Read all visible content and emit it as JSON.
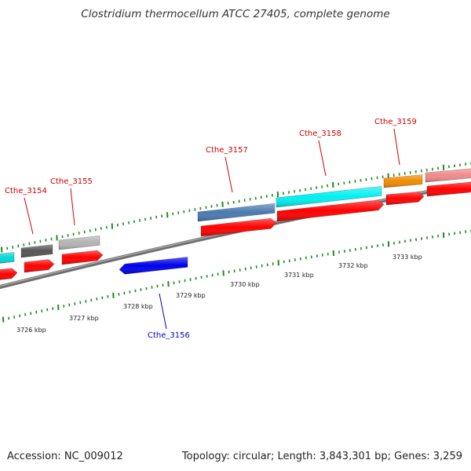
{
  "title": "Clostridium thermocellum ATCC 27405, complete genome",
  "accession": "Accession: NC_009012",
  "topology": "Topology: circular; Length: 3,843,301 bp; Genes: 3,259",
  "colors": {
    "forward_gene_red": "#ff0000",
    "reverse_gene_blue": "#0000ee",
    "label_red": "#cc0000",
    "label_blue": "#0000cc",
    "tick_green": "#1e8a1e",
    "backbone_gray": "#7a7a7a"
  },
  "scale_labels": [
    "3726 kbp",
    "3727 kbp",
    "3728 kbp",
    "3729 kbp",
    "3730 kbp",
    "3731 kbp",
    "3732 kbp",
    "3733 kbp"
  ],
  "gene_labels": [
    {
      "name": "Cthe_3154",
      "strand": "forward"
    },
    {
      "name": "Cthe_3155",
      "strand": "forward"
    },
    {
      "name": "Cthe_3156",
      "strand": "reverse"
    },
    {
      "name": "Cthe_3157",
      "strand": "forward"
    },
    {
      "name": "Cthe_3158",
      "strand": "forward"
    },
    {
      "name": "Cthe_3159",
      "strand": "forward"
    }
  ],
  "feature_colors": [
    "#00d8d8",
    "#555555",
    "#b4b4b4",
    "#4a7ab0",
    "#00f0f0",
    "#f08c00",
    "#f08a8a"
  ]
}
